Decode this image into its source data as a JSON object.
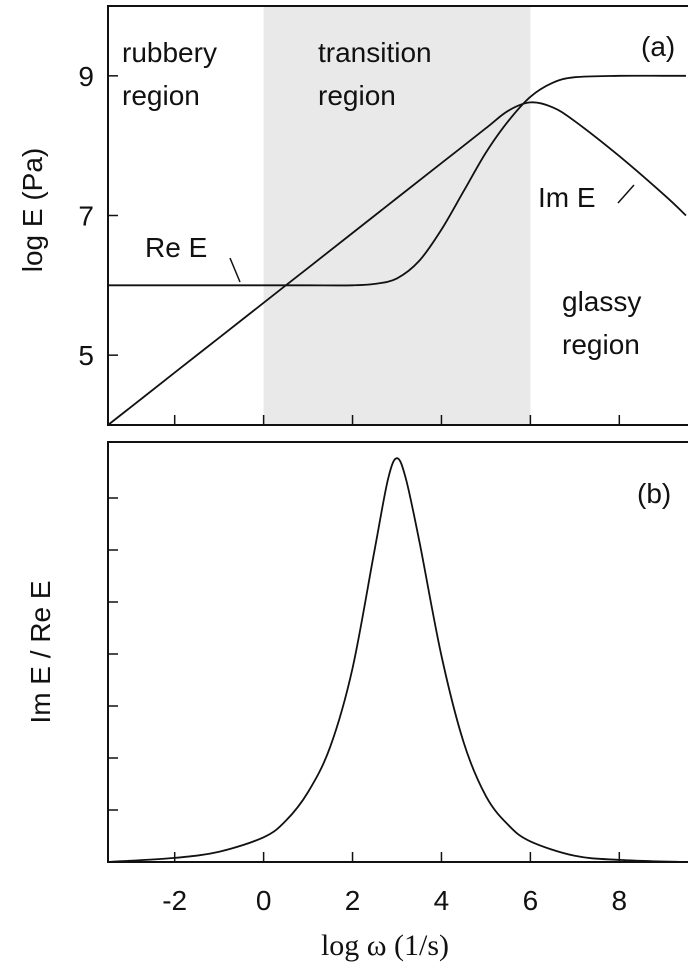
{
  "chart_data": [
    {
      "panel": "(a)",
      "type": "line",
      "xlim": [
        -3.5,
        9.5
      ],
      "ylim": [
        4,
        10
      ],
      "ylabel": "log E (Pa)",
      "yticks": [
        5,
        7,
        9
      ],
      "xticks": [
        -2,
        0,
        2,
        4,
        6,
        8
      ],
      "grid": false,
      "regions": [
        {
          "name": "rubbery region",
          "line1": "rubbery",
          "line2": "region",
          "shaded": false
        },
        {
          "name": "transition region",
          "line1": "transition",
          "line2": "region",
          "range": [
            0,
            6
          ],
          "shaded": true
        },
        {
          "name": "glassy region",
          "line1": "glassy",
          "line2": "region",
          "shaded": false
        }
      ],
      "series": [
        {
          "name": "Re E",
          "x": [
            -3.5,
            -2,
            -1,
            0,
            1,
            2,
            2.5,
            3,
            3.5,
            4,
            4.5,
            5,
            5.5,
            6,
            6.5,
            7,
            8,
            9,
            9.5
          ],
          "y": [
            6.0,
            6.0,
            6.0,
            6.0,
            6.0,
            6.0,
            6.02,
            6.1,
            6.35,
            6.8,
            7.35,
            7.9,
            8.35,
            8.7,
            8.9,
            8.98,
            9.0,
            9.0,
            9.0
          ]
        },
        {
          "name": "Im E",
          "x": [
            -3.5,
            -2,
            -1,
            0,
            1,
            2,
            3,
            4,
            5,
            5.5,
            6,
            6.5,
            7,
            8,
            9,
            9.5
          ],
          "y": [
            4.0,
            4.75,
            5.25,
            5.75,
            6.25,
            6.75,
            7.25,
            7.75,
            8.25,
            8.5,
            8.62,
            8.55,
            8.35,
            7.85,
            7.3,
            7.0
          ]
        }
      ]
    },
    {
      "panel": "(b)",
      "type": "line",
      "xlim": [
        -3.5,
        9.5
      ],
      "ylim": [
        0,
        1
      ],
      "ylabel": "Im E / Re E",
      "xlabel": "log ω  (1/s)",
      "xticks": [
        -2,
        0,
        2,
        4,
        6,
        8
      ],
      "grid": false,
      "series": [
        {
          "name": "Im E / Re E",
          "x": [
            -3.5,
            -2,
            -1,
            0,
            0.5,
            1,
            1.5,
            2,
            2.5,
            2.8,
            3,
            3.2,
            3.5,
            4,
            4.5,
            5,
            5.5,
            6,
            7,
            8,
            9.5
          ],
          "y": [
            0.0,
            0.01,
            0.025,
            0.06,
            0.1,
            0.17,
            0.28,
            0.47,
            0.76,
            0.93,
            0.98,
            0.93,
            0.78,
            0.5,
            0.29,
            0.16,
            0.09,
            0.05,
            0.015,
            0.005,
            0.0
          ]
        }
      ]
    }
  ]
}
